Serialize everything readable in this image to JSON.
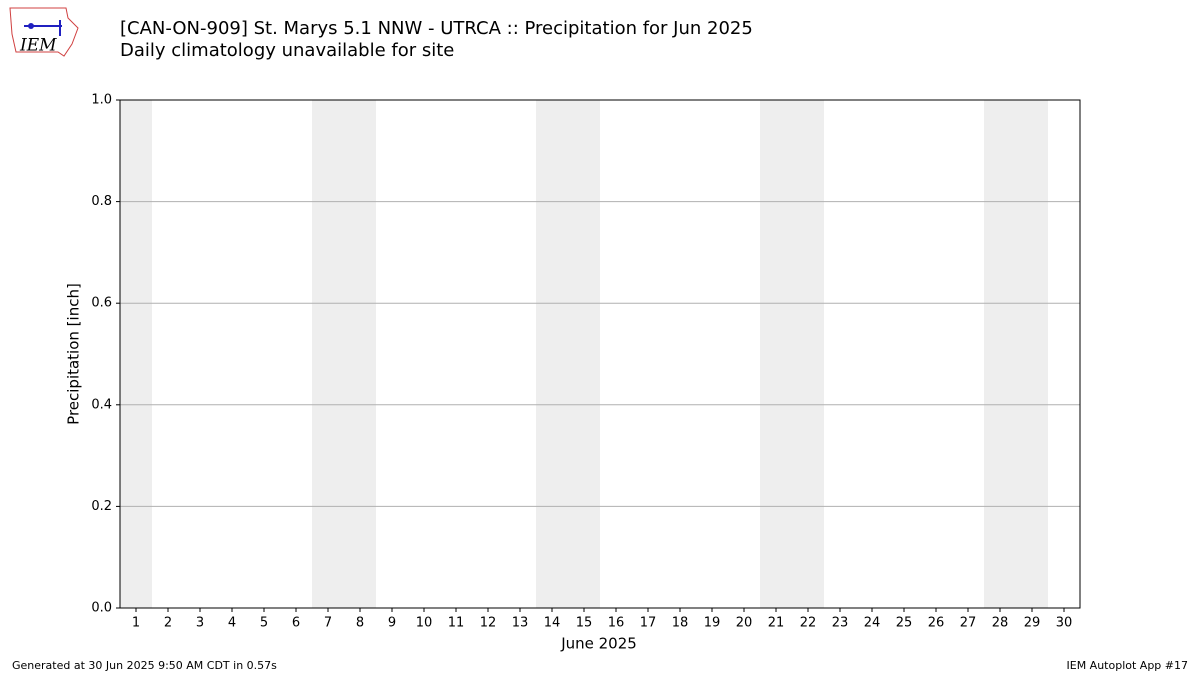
{
  "logo_text": "IEM",
  "chart_data": {
    "type": "bar",
    "title": "[CAN-ON-909] St. Marys 5.1 NNW - UTRCA :: Precipitation for Jun 2025",
    "subtitle": "Daily climatology unavailable for site",
    "x_label": "June 2025",
    "y_label": "Precipitation [inch]",
    "categories": [
      "1",
      "2",
      "3",
      "4",
      "5",
      "6",
      "7",
      "8",
      "9",
      "10",
      "11",
      "12",
      "13",
      "14",
      "15",
      "16",
      "17",
      "18",
      "19",
      "20",
      "21",
      "22",
      "23",
      "24",
      "25",
      "26",
      "27",
      "28",
      "29",
      "30"
    ],
    "values": [
      0,
      0,
      0,
      0,
      0,
      0,
      0,
      0,
      0,
      0,
      0,
      0,
      0,
      0,
      0,
      0,
      0,
      0,
      0,
      0,
      0,
      0,
      0,
      0,
      0,
      0,
      0,
      0,
      0,
      0
    ],
    "color": "#1f77b4",
    "shaded_days": [
      1,
      7,
      8,
      14,
      15,
      21,
      22,
      28,
      29
    ],
    "shade_color": "#eeeeee",
    "ylim": [
      0,
      1
    ],
    "yticks": [
      {
        "value": 0,
        "label": "0.0"
      },
      {
        "value": 0.2,
        "label": "0.2"
      },
      {
        "value": 0.4,
        "label": "0.4"
      },
      {
        "value": 0.6,
        "label": "0.6"
      },
      {
        "value": 0.8,
        "label": "0.8"
      },
      {
        "value": 1,
        "label": "1.0"
      }
    ],
    "grid": true,
    "footer_left": "Generated at 30 Jun 2025 9:50 AM CDT in 0.57s",
    "footer_right": "IEM Autoplot App #17"
  }
}
